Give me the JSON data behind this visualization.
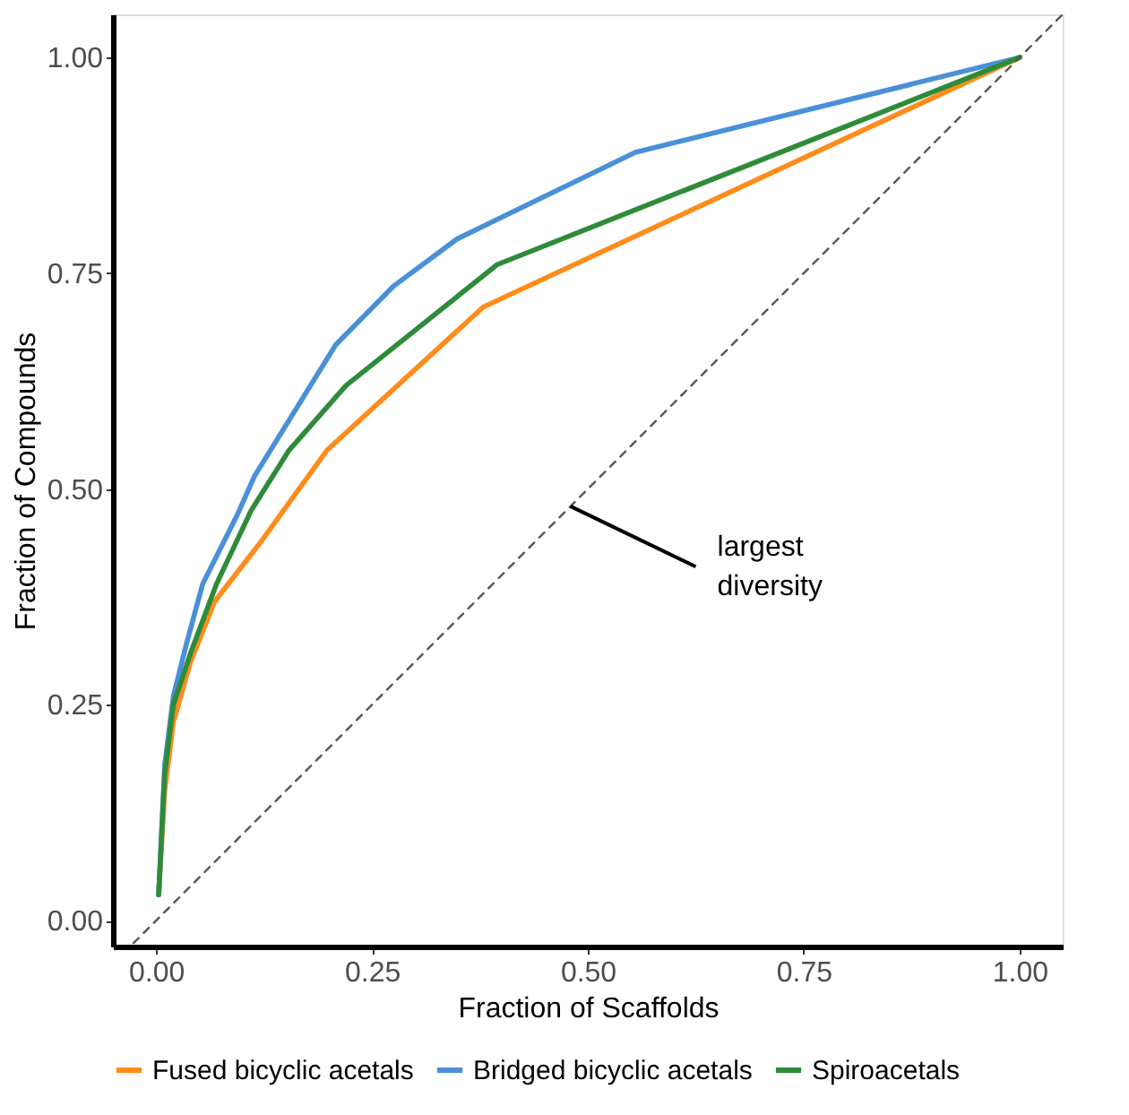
{
  "chart_data": {
    "type": "line",
    "xlabel": "Fraction of Scaffolds",
    "ylabel": "Fraction of Compounds",
    "xlim": [
      -0.05,
      1.05
    ],
    "ylim": [
      -0.03,
      1.05
    ],
    "xticks": [
      {
        "value": 0,
        "label": "0.00"
      },
      0.25,
      {
        "value": 0.5,
        "label": "0.50"
      },
      0.75,
      {
        "value": 1,
        "label": "1.00"
      }
    ],
    "yticks": [
      {
        "value": 0,
        "label": "0.00"
      },
      0.25,
      {
        "value": 0.5,
        "label": "0.50"
      },
      0.75,
      {
        "value": 1,
        "label": "1.00"
      }
    ],
    "grid": false,
    "legend": "bottom",
    "marker": "none",
    "annotations": [
      {
        "text": "largest diversity",
        "x": 0.48,
        "y": 0.48
      }
    ],
    "series": [
      {
        "name": "Fused bicyclic acetals",
        "color": "#ff8c1a",
        "x": [
          0.003,
          0.01,
          0.02,
          0.04,
          0.068,
          0.12,
          0.198,
          0.379,
          1
        ],
        "values": [
          0.03,
          0.15,
          0.23,
          0.3,
          0.37,
          0.437,
          0.545,
          0.711,
          1
        ]
      },
      {
        "name": "Bridged bicyclic acetals",
        "color": "#4a90d9",
        "x": [
          0.003,
          0.01,
          0.02,
          0.035,
          0.054,
          0.094,
          0.114,
          0.208,
          0.275,
          0.349,
          0.555,
          1
        ],
        "values": [
          0.03,
          0.18,
          0.26,
          0.32,
          0.39,
          0.47,
          0.515,
          0.667,
          0.735,
          0.79,
          0.89,
          1
        ]
      },
      {
        "name": "Spiroacetals",
        "color": "#2e8b3a",
        "x": [
          0.003,
          0.01,
          0.02,
          0.04,
          0.07,
          0.11,
          0.154,
          0.22,
          0.395,
          1
        ],
        "values": [
          0.03,
          0.17,
          0.25,
          0.31,
          0.39,
          0.475,
          0.545,
          0.62,
          0.76,
          1
        ]
      },
      {
        "color": "#555555",
        "line_style": "dashed",
        "x": [
          -0.026,
          1.05
        ],
        "values": [
          -0.026,
          1.05
        ]
      }
    ]
  }
}
